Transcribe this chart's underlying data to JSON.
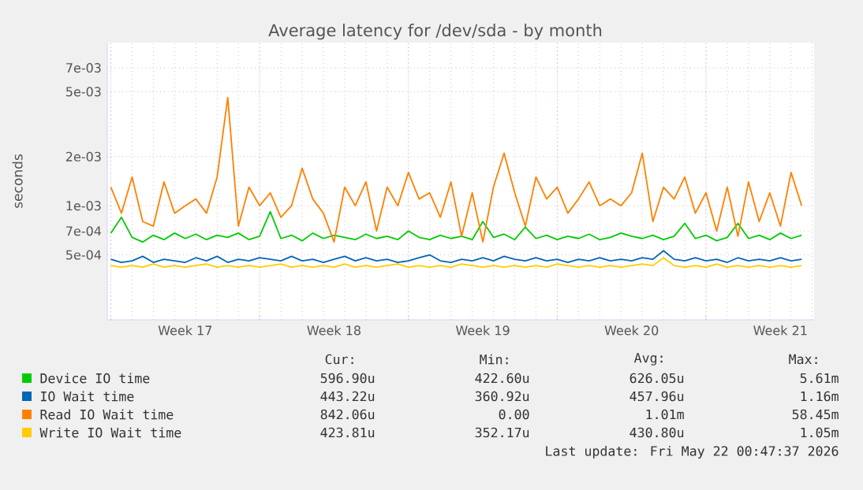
{
  "chart_data": {
    "type": "line",
    "title": "Average latency for /dev/sda - by month",
    "ylabel": "seconds",
    "log": "y",
    "grid": true,
    "legend": "bottom",
    "xlim": [
      "2026-04-19T20:00",
      "2026-05-23T02:00"
    ],
    "xticks": [
      {
        "value": "2026-04-20T00:00",
        "label": null
      },
      {
        "value": "2026-04-23T12:00",
        "label": "Week 17"
      },
      {
        "value": "2026-04-27T00:00",
        "label": null
      },
      {
        "value": "2026-04-30T12:00",
        "label": "Week 18"
      },
      {
        "value": "2026-05-04T00:00",
        "label": null
      },
      {
        "value": "2026-05-07T12:00",
        "label": "Week 19"
      },
      {
        "value": "2026-05-11T00:00",
        "label": null
      },
      {
        "value": "2026-05-14T12:00",
        "label": "Week 20"
      },
      {
        "value": "2026-05-18T00:00",
        "label": null
      },
      {
        "value": "2026-05-21T12:00",
        "label": "Week 21"
      }
    ],
    "ylim": [
      0.0002,
      0.01
    ],
    "yticks": [
      {
        "value": 0.0005,
        "label": "5e-04"
      },
      {
        "value": 0.0007,
        "label": "7e-04"
      },
      {
        "value": 0.001,
        "label": "1e-03"
      },
      {
        "value": 0.002,
        "label": "2e-03"
      },
      {
        "value": 0.005,
        "label": "5e-03"
      },
      {
        "value": 0.007,
        "label": "7e-03"
      }
    ],
    "x": [
      "2026-04-20T00:00",
      "2026-04-20T12:00",
      "2026-04-21T00:00",
      "2026-04-21T12:00",
      "2026-04-22T00:00",
      "2026-04-22T12:00",
      "2026-04-23T00:00",
      "2026-04-23T12:00",
      "2026-04-24T00:00",
      "2026-04-24T12:00",
      "2026-04-25T00:00",
      "2026-04-25T12:00",
      "2026-04-26T00:00",
      "2026-04-26T12:00",
      "2026-04-27T00:00",
      "2026-04-27T12:00",
      "2026-04-28T00:00",
      "2026-04-28T12:00",
      "2026-04-29T00:00",
      "2026-04-29T12:00",
      "2026-04-30T00:00",
      "2026-04-30T12:00",
      "2026-05-01T00:00",
      "2026-05-01T12:00",
      "2026-05-02T00:00",
      "2026-05-02T12:00",
      "2026-05-03T00:00",
      "2026-05-03T12:00",
      "2026-05-04T00:00",
      "2026-05-04T12:00",
      "2026-05-05T00:00",
      "2026-05-05T12:00",
      "2026-05-06T00:00",
      "2026-05-06T12:00",
      "2026-05-07T00:00",
      "2026-05-07T12:00",
      "2026-05-08T00:00",
      "2026-05-08T12:00",
      "2026-05-09T00:00",
      "2026-05-09T12:00",
      "2026-05-10T00:00",
      "2026-05-10T12:00",
      "2026-05-11T00:00",
      "2026-05-11T12:00",
      "2026-05-12T00:00",
      "2026-05-12T12:00",
      "2026-05-13T00:00",
      "2026-05-13T12:00",
      "2026-05-14T00:00",
      "2026-05-14T12:00",
      "2026-05-15T00:00",
      "2026-05-15T12:00",
      "2026-05-16T00:00",
      "2026-05-16T12:00",
      "2026-05-17T00:00",
      "2026-05-17T12:00",
      "2026-05-18T00:00",
      "2026-05-18T12:00",
      "2026-05-19T00:00",
      "2026-05-19T12:00",
      "2026-05-20T00:00",
      "2026-05-20T12:00",
      "2026-05-21T00:00",
      "2026-05-21T12:00",
      "2026-05-22T00:00",
      "2026-05-22T12:00"
    ],
    "series": [
      {
        "name": "Device IO time",
        "color": "#00cc00",
        "values": [
          0.00068,
          0.00085,
          0.00064,
          0.0006,
          0.00066,
          0.00062,
          0.00068,
          0.00063,
          0.00067,
          0.00062,
          0.00066,
          0.00064,
          0.00068,
          0.00062,
          0.00065,
          0.00092,
          0.00063,
          0.00066,
          0.00061,
          0.00068,
          0.00063,
          0.00066,
          0.00064,
          0.00062,
          0.00067,
          0.00063,
          0.00065,
          0.00062,
          0.0007,
          0.00064,
          0.00062,
          0.00066,
          0.00063,
          0.00065,
          0.00062,
          0.0008,
          0.00064,
          0.00067,
          0.00062,
          0.00074,
          0.00063,
          0.00066,
          0.00062,
          0.00065,
          0.00063,
          0.00067,
          0.00062,
          0.00064,
          0.00068,
          0.00065,
          0.00063,
          0.00066,
          0.00062,
          0.00065,
          0.00078,
          0.00063,
          0.00066,
          0.00061,
          0.00064,
          0.00078,
          0.00063,
          0.00066,
          0.00062,
          0.00068,
          0.00063,
          0.00066
        ]
      },
      {
        "name": "IO Wait time",
        "color": "#0066b3",
        "values": [
          0.00047,
          0.00045,
          0.00046,
          0.00049,
          0.00045,
          0.00047,
          0.00046,
          0.00045,
          0.00048,
          0.00046,
          0.00049,
          0.00045,
          0.00047,
          0.00046,
          0.00048,
          0.00047,
          0.00046,
          0.00049,
          0.00046,
          0.00047,
          0.00045,
          0.00047,
          0.00049,
          0.00046,
          0.00048,
          0.00046,
          0.00047,
          0.00045,
          0.00046,
          0.00048,
          0.0005,
          0.00046,
          0.00045,
          0.00047,
          0.00046,
          0.00048,
          0.00046,
          0.00049,
          0.00047,
          0.00046,
          0.00048,
          0.00046,
          0.00047,
          0.00045,
          0.00047,
          0.00046,
          0.00048,
          0.00046,
          0.00047,
          0.00046,
          0.00048,
          0.00047,
          0.00053,
          0.00047,
          0.00046,
          0.00048,
          0.00046,
          0.00047,
          0.00045,
          0.00048,
          0.00046,
          0.00047,
          0.00046,
          0.00048,
          0.00046,
          0.00047
        ]
      },
      {
        "name": "Read IO Wait time",
        "color": "#ff8000",
        "values": [
          0.0013,
          0.0009,
          0.0015,
          0.0008,
          0.00075,
          0.0014,
          0.0009,
          0.001,
          0.0011,
          0.0009,
          0.0015,
          0.0046,
          0.00075,
          0.0013,
          0.001,
          0.0012,
          0.00085,
          0.001,
          0.0017,
          0.0011,
          0.0009,
          0.0006,
          0.0013,
          0.001,
          0.0014,
          0.0007,
          0.0013,
          0.001,
          0.0016,
          0.0011,
          0.0012,
          0.00085,
          0.0014,
          0.00065,
          0.0012,
          0.0006,
          0.0013,
          0.0021,
          0.0012,
          0.00075,
          0.0015,
          0.0011,
          0.0013,
          0.0009,
          0.0011,
          0.0014,
          0.001,
          0.0011,
          0.001,
          0.0012,
          0.0021,
          0.0008,
          0.0013,
          0.0011,
          0.0015,
          0.0009,
          0.0012,
          0.0007,
          0.0013,
          0.00065,
          0.0014,
          0.0008,
          0.0012,
          0.00075,
          0.0016,
          0.001
        ]
      },
      {
        "name": "Write IO Wait time",
        "color": "#ffcc00",
        "values": [
          0.00043,
          0.00042,
          0.00043,
          0.00042,
          0.00044,
          0.00042,
          0.00043,
          0.00042,
          0.00043,
          0.00044,
          0.00042,
          0.00043,
          0.00042,
          0.00043,
          0.00042,
          0.00043,
          0.00044,
          0.00042,
          0.00043,
          0.00042,
          0.00043,
          0.00042,
          0.00044,
          0.00042,
          0.00043,
          0.00042,
          0.00043,
          0.00044,
          0.00042,
          0.00043,
          0.00042,
          0.00043,
          0.00042,
          0.00044,
          0.00043,
          0.00042,
          0.00043,
          0.00042,
          0.00043,
          0.00042,
          0.00043,
          0.00042,
          0.00044,
          0.00043,
          0.00042,
          0.00043,
          0.00042,
          0.00043,
          0.00042,
          0.00043,
          0.00044,
          0.00043,
          0.00048,
          0.00043,
          0.00042,
          0.00043,
          0.00042,
          0.00044,
          0.00042,
          0.00043,
          0.00042,
          0.00043,
          0.00042,
          0.00043,
          0.00042,
          0.00043
        ]
      }
    ],
    "annotations": [
      "Cur:",
      "Min:",
      "Avg:",
      "Max:",
      "596.90u",
      "422.60u",
      "626.05u",
      "5.61m",
      "443.22u",
      "360.92u",
      "457.96u",
      "1.16m",
      "842.06u",
      "0.00",
      "1.01m",
      "58.45m",
      "423.81u",
      "352.17u",
      "430.80u",
      "1.05m",
      "Last update: Fri May 22 00:47:37 2026"
    ]
  }
}
